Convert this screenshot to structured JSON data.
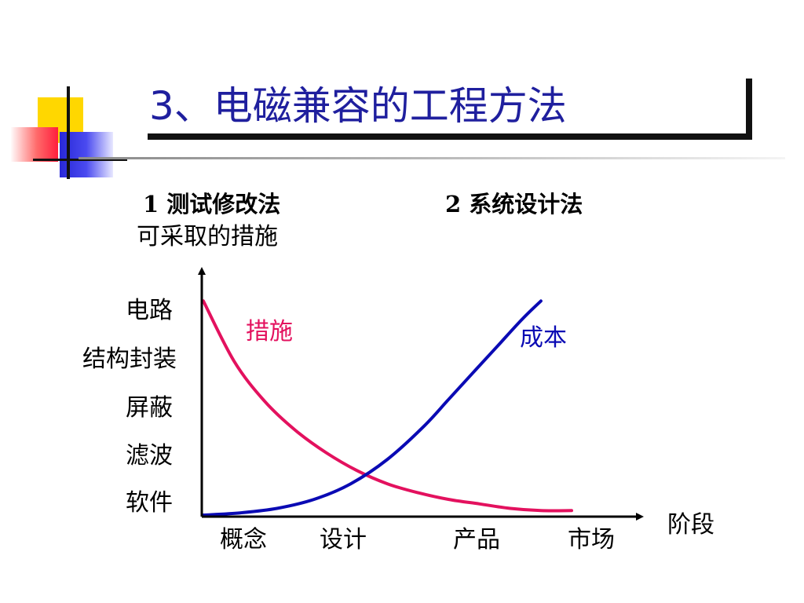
{
  "slide": {
    "title": "3、电磁兼容的工程方法",
    "method1": "1 测试修改法",
    "method1_sub": "可采取的措施",
    "method2": "2 系统设计法"
  },
  "colors": {
    "title": "#1f1f9e",
    "measures": "#e3115e",
    "cost": "#0a0ab4",
    "axis": "#000000"
  },
  "chart_data": {
    "type": "line",
    "title": "",
    "xlabel": "阶段",
    "ylabel": "",
    "categories": [
      "概念",
      "设计",
      "产品",
      "市场"
    ],
    "y_categories": [
      "电路",
      "结构封装",
      "屏蔽",
      "滤波",
      "软件"
    ],
    "xlim": [
      0,
      3
    ],
    "ylim": [
      0,
      1
    ],
    "series": [
      {
        "name": "措施",
        "color": "#e3115e",
        "x": [
          0,
          0.25,
          0.5,
          0.75,
          1.0,
          1.25,
          1.5,
          1.75,
          2.0,
          2.25,
          2.5,
          2.75,
          3.0
        ],
        "values": [
          0.96,
          0.69,
          0.51,
          0.38,
          0.28,
          0.2,
          0.14,
          0.1,
          0.07,
          0.05,
          0.03,
          0.02,
          0.02
        ]
      },
      {
        "name": "成本",
        "color": "#0a0ab4",
        "x": [
          0,
          0.3,
          0.6,
          0.9,
          1.2,
          1.5,
          1.8,
          2.0,
          2.2,
          2.4,
          2.6,
          2.75
        ],
        "values": [
          0.0,
          0.01,
          0.03,
          0.07,
          0.14,
          0.25,
          0.4,
          0.52,
          0.64,
          0.76,
          0.88,
          0.96
        ]
      }
    ]
  }
}
